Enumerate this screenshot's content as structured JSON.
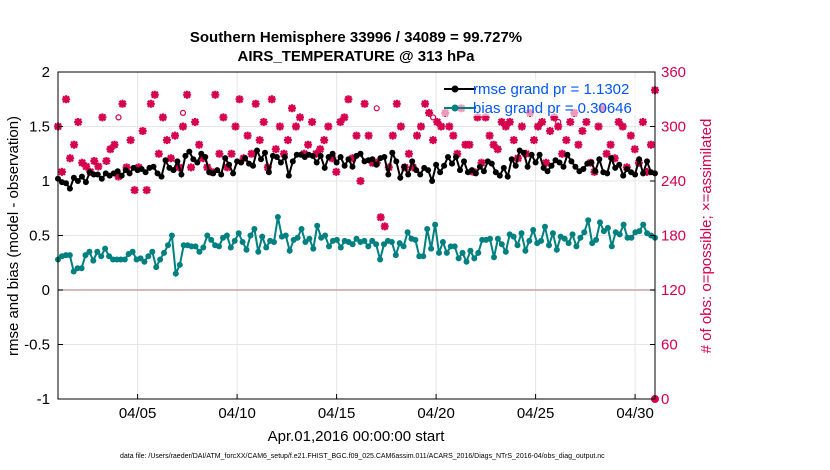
{
  "chart_data": {
    "type": "line",
    "title": [
      "Southern Hemisphere 33996 / 34089 = 99.727%",
      "AIRS_TEMPERATURE @ 313 hPa"
    ],
    "xlabel": "Apr.01,2016 00:00:00 start",
    "ylabel": "rmse and bias (model - observation)",
    "ylabel_right": "# of obs: o=possible; ×=assimilated",
    "xlim": [
      1,
      31
    ],
    "ylim": [
      -1,
      2
    ],
    "ylim_right": [
      0,
      360
    ],
    "x_ticks": [
      5,
      10,
      15,
      20,
      25,
      30
    ],
    "x_tick_labels": [
      "04/05",
      "04/10",
      "04/15",
      "04/20",
      "04/25",
      "04/30"
    ],
    "y_ticks": [
      "-1",
      "-0.5",
      "0",
      "0.5",
      "1",
      "1.5",
      "2"
    ],
    "y_ticks_right": [
      "0",
      "60",
      "120",
      "180",
      "240",
      "300",
      "360"
    ],
    "legend": [
      "rmse grand pr = 1.1302",
      "bias grand pr = 0.30646"
    ],
    "footer": "data file: /Users/raeder/DAI/ATM_forcXX/CAM6_setup/f.e21.FHIST_BGC.f09_025.CAM6assim.011/ACARS_2016/Diags_NTrS_2016-04/obs_diag_output.nc",
    "colors": {
      "rmse": "#000000",
      "bias": "#008080",
      "obs": "#d6004f",
      "zero": "#c9a0a8",
      "legend_text": "#0055ff"
    },
    "series": [
      {
        "name": "rmse grand pr = 1.1302",
        "values": [
          1.02,
          0.99,
          0.98,
          0.93,
          1.03,
          1.0,
          1.04,
          0.99,
          1.08,
          1.06,
          1.06,
          1.02,
          1.07,
          1.05,
          1.07,
          1.09,
          1.05,
          1.1,
          1.07,
          1.12,
          1.1,
          1.11,
          1.08,
          1.12,
          1.13,
          1.07,
          1.04,
          1.19,
          1.12,
          1.1,
          1.18,
          1.06,
          1.23,
          1.27,
          1.2,
          1.17,
          1.25,
          1.22,
          1.08,
          1.07,
          1.1,
          1.06,
          1.21,
          1.15,
          1.07,
          1.18,
          1.17,
          1.21,
          1.16,
          1.14,
          1.28,
          1.2,
          1.26,
          1.08,
          1.23,
          1.22,
          1.17,
          1.22,
          1.05,
          1.18,
          1.24,
          1.24,
          1.22,
          1.24,
          1.23,
          1.17,
          1.23,
          1.12,
          1.22,
          1.25,
          1.17,
          1.22,
          1.14,
          1.2,
          1.13,
          1.23,
          1.25,
          1.18,
          1.19,
          1.2,
          1.15,
          1.21,
          1.22,
          1.06,
          1.26,
          1.18,
          1.03,
          1.13,
          1.06,
          1.18,
          1.1,
          1.06,
          1.12,
          1.1,
          1.0,
          1.15,
          1.08,
          1.14,
          1.22,
          1.16,
          1.22,
          1.1,
          1.18,
          1.08,
          1.1,
          1.07,
          1.13,
          1.09,
          1.18,
          1.16,
          1.08,
          1.05,
          1.12,
          1.04,
          1.2,
          1.14,
          1.28,
          1.26,
          1.13,
          1.24,
          1.17,
          1.24,
          1.12,
          1.09,
          1.14,
          1.19,
          1.17,
          1.13,
          1.24,
          1.18,
          1.13,
          1.09,
          1.11,
          1.16,
          1.17,
          1.09,
          1.2,
          1.08,
          1.07,
          1.21,
          1.12,
          1.15,
          1.05,
          1.11,
          1.08,
          1.06,
          1.2,
          1.07,
          1.18,
          1.08,
          1.07
        ]
      },
      {
        "name": "bias grand pr = 0.30646",
        "values": [
          0.28,
          0.31,
          0.32,
          0.32,
          0.17,
          0.2,
          0.2,
          0.32,
          0.35,
          0.27,
          0.35,
          0.31,
          0.38,
          0.31,
          0.28,
          0.28,
          0.28,
          0.28,
          0.33,
          0.35,
          0.28,
          0.29,
          0.26,
          0.31,
          0.35,
          0.21,
          0.28,
          0.34,
          0.41,
          0.5,
          0.15,
          0.23,
          0.41,
          0.41,
          0.4,
          0.4,
          0.35,
          0.39,
          0.5,
          0.46,
          0.41,
          0.4,
          0.48,
          0.5,
          0.39,
          0.45,
          0.52,
          0.44,
          0.37,
          0.5,
          0.56,
          0.35,
          0.49,
          0.39,
          0.45,
          0.44,
          0.67,
          0.49,
          0.5,
          0.36,
          0.46,
          0.48,
          0.56,
          0.44,
          0.47,
          0.38,
          0.59,
          0.48,
          0.5,
          0.4,
          0.45,
          0.46,
          0.39,
          0.45,
          0.44,
          0.42,
          0.47,
          0.44,
          0.45,
          0.4,
          0.45,
          0.42,
          0.28,
          0.42,
          0.45,
          0.44,
          0.32,
          0.43,
          0.4,
          0.53,
          0.47,
          0.46,
          0.31,
          0.31,
          0.56,
          0.38,
          0.6,
          0.34,
          0.44,
          0.34,
          0.4,
          0.4,
          0.29,
          0.34,
          0.26,
          0.36,
          0.29,
          0.34,
          0.46,
          0.46,
          0.47,
          0.3,
          0.47,
          0.42,
          0.35,
          0.51,
          0.49,
          0.41,
          0.52,
          0.36,
          0.45,
          0.55,
          0.43,
          0.45,
          0.58,
          0.41,
          0.52,
          0.37,
          0.49,
          0.47,
          0.43,
          0.51,
          0.4,
          0.48,
          0.53,
          0.64,
          0.43,
          0.46,
          0.62,
          0.54,
          0.57,
          0.4,
          0.53,
          0.51,
          0.6,
          0.48,
          0.48,
          0.53,
          0.54,
          0.6,
          0.52,
          0.5,
          0.48
        ]
      },
      {
        "name": "assimilated",
        "values": [
          300,
          250,
          330,
          265,
          280,
          305,
          260,
          256,
          250,
          262,
          256,
          310,
          262,
          275,
          280,
          245,
          325,
          255,
          285,
          230,
          255,
          295,
          230,
          325,
          335,
          270,
          310,
          285,
          265,
          290,
          255,
          300,
          335,
          255,
          305,
          280,
          265,
          255,
          250,
          335,
          270,
          310,
          255,
          270,
          300,
          330,
          265,
          290,
          270,
          325,
          285,
          305,
          255,
          330,
          275,
          300,
          270,
          285,
          320,
          300,
          310,
          270,
          280,
          305,
          270,
          275,
          285,
          300,
          265,
          250,
          305,
          310,
          330,
          265,
          290,
          240,
          325,
          290,
          260,
          260,
          200,
          190,
          255,
          290,
          325,
          300,
          255,
          270,
          255,
          290,
          300,
          325,
          315,
          285,
          305,
          300,
          315,
          300,
          290,
          270,
          320,
          280,
          280,
          250,
          310,
          260,
          310,
          290,
          280,
          275,
          305,
          300,
          305,
          285,
          265,
          300,
          270,
          315,
          285,
          300,
          305,
          260,
          295,
          310,
          300,
          270,
          285,
          305,
          315,
          280,
          295,
          305,
          260,
          250,
          300,
          320,
          270,
          280,
          265,
          305,
          300,
          255,
          290,
          275,
          260,
          305,
          250,
          280,
          340
        ]
      },
      {
        "name": "possible",
        "values": [
          310,
          315,
          320,
          310,
          300,
          305
        ]
      }
    ]
  }
}
